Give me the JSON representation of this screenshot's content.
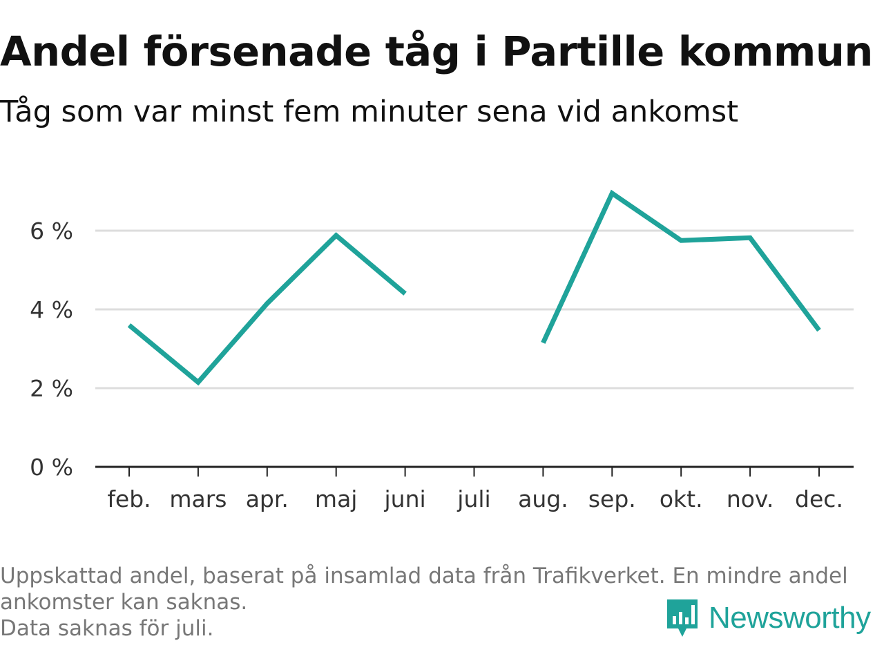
{
  "header": {
    "title": "Andel försenade tåg i Partille kommun",
    "subtitle": "Tåg som var minst fem minuter sena vid ankomst"
  },
  "footer": {
    "note_lines": [
      "Uppskattad andel, baserat på insamlad data från Trafikverket. En mindre andel",
      "ankomster kan saknas.",
      "Data saknas för juli."
    ],
    "brand": "Newsworthy",
    "brand_color": "#1fa39a"
  },
  "chart_data": {
    "type": "line",
    "title": "Andel försenade tåg i Partille kommun",
    "subtitle": "Tåg som var minst fem minuter sena vid ankomst",
    "categories": [
      "feb.",
      "mars",
      "apr.",
      "maj",
      "juni",
      "juli",
      "aug.",
      "sep.",
      "okt.",
      "nov.",
      "dec."
    ],
    "series": [
      {
        "values": [
          3.6,
          2.15,
          4.15,
          5.88,
          4.4,
          null,
          3.15,
          6.95,
          5.75,
          5.82,
          3.47
        ],
        "color": "#1fa39a"
      }
    ],
    "ylim": [
      0,
      7
    ],
    "yticks": [
      0,
      2,
      4,
      6
    ],
    "ytick_labels": [
      "0 %",
      "2 %",
      "4 %",
      "6 %"
    ],
    "grid": true,
    "axis_color": "#222222",
    "grid_color": "#dddddd"
  }
}
